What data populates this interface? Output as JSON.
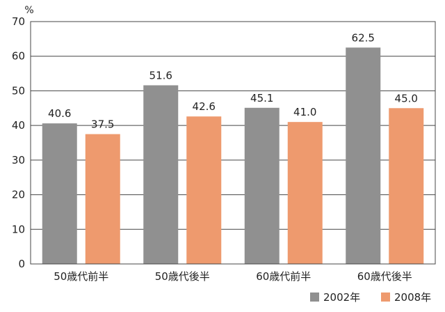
{
  "chart_data": {
    "type": "bar",
    "title": "",
    "xlabel": "",
    "ylabel": "%",
    "ylim": [
      0,
      70
    ],
    "yticks": [
      0,
      10,
      20,
      30,
      40,
      50,
      60,
      70
    ],
    "categories": [
      "50歳代前半",
      "50歳代後半",
      "60歳代前半",
      "60歳代後半"
    ],
    "series": [
      {
        "name": "2002年",
        "values": [
          40.6,
          51.6,
          45.1,
          62.5
        ],
        "labels": [
          "40.6",
          "51.6",
          "45.1",
          "62.5"
        ],
        "color": "#909090"
      },
      {
        "name": "2008年",
        "values": [
          37.5,
          42.6,
          41.0,
          45.0
        ],
        "labels": [
          "37.5",
          "42.6",
          "41.0",
          "45.0"
        ],
        "color": "#EE9A6E"
      }
    ],
    "grid": true,
    "legend": "bottom-right"
  }
}
